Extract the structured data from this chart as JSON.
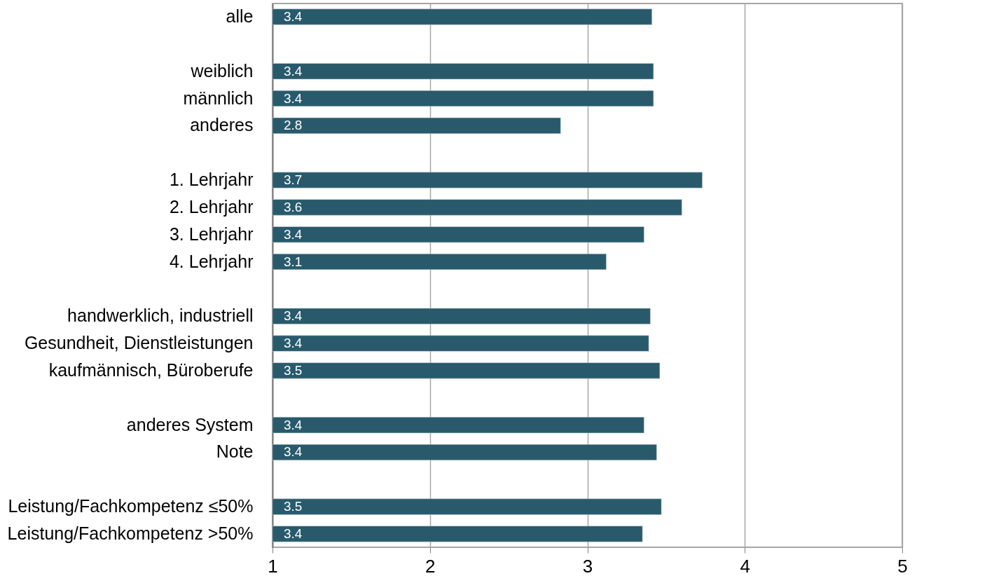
{
  "chart_data": {
    "type": "bar",
    "orientation": "horizontal",
    "categories": [
      "alle",
      null,
      "weiblich",
      "männlich",
      "anderes",
      null,
      "1. Lehrjahr",
      "2. Lehrjahr",
      "3. Lehrjahr",
      "4. Lehrjahr",
      null,
      "handwerklich, industriell",
      "Gesundheit, Dienstleistungen",
      "kaufmännisch, Büroberufe",
      null,
      "anderes System",
      "Note",
      null,
      "Leistung/Fachkompetenz ≤50%",
      "Leistung/Fachkompetenz >50%"
    ],
    "values": [
      3.41,
      null,
      3.42,
      3.42,
      2.83,
      null,
      3.73,
      3.6,
      3.36,
      3.12,
      null,
      3.4,
      3.39,
      3.46,
      null,
      3.36,
      3.44,
      null,
      3.47,
      3.35
    ],
    "value_labels": [
      "3.4",
      null,
      "3.4",
      "3.4",
      "2.8",
      null,
      "3.7",
      "3.6",
      "3.4",
      "3.1",
      null,
      "3.4",
      "3.4",
      "3.5",
      null,
      "3.4",
      "3.4",
      null,
      "3.5",
      "3.4"
    ],
    "color": "#285a6c",
    "xlim": [
      1,
      5
    ],
    "xticks": [
      1,
      2,
      3,
      4,
      5
    ],
    "grid": "x"
  }
}
